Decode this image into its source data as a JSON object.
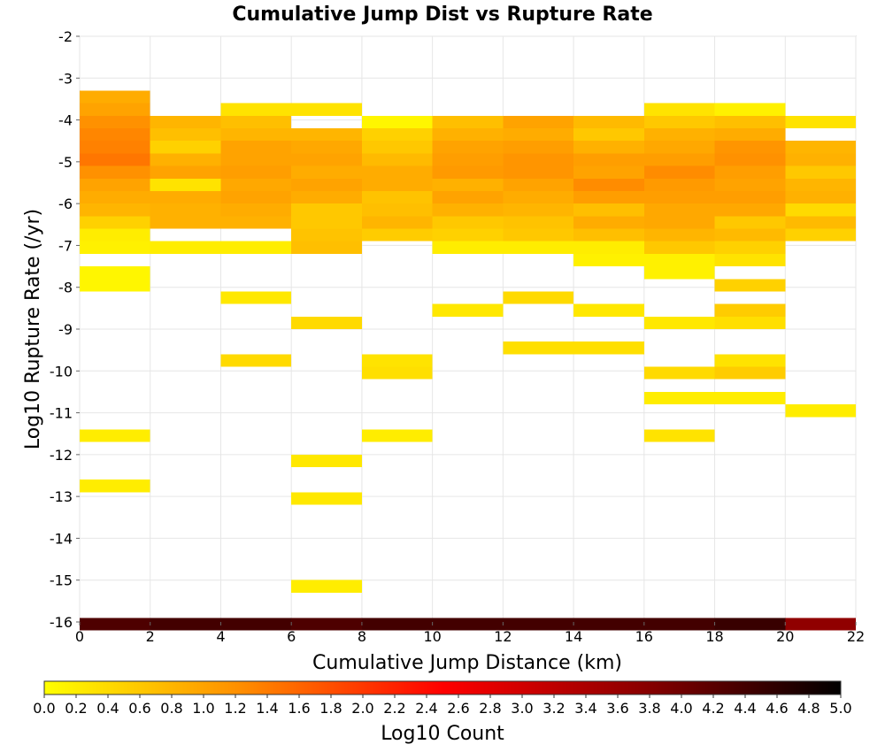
{
  "chart_data": {
    "type": "heatmap",
    "title": "Cumulative Jump Dist vs Rupture Rate",
    "xlabel": "Cumulative Jump Distance (km)",
    "ylabel": "Log10 Rupture Rate (/yr)",
    "colorbar_label": "Log10 Count",
    "xlim": [
      0,
      22
    ],
    "ylim": [
      -16,
      -2
    ],
    "x_ticks": [
      0,
      2,
      4,
      6,
      8,
      10,
      12,
      14,
      16,
      18,
      20,
      22
    ],
    "y_ticks": [
      -2,
      -3,
      -4,
      -5,
      -6,
      -7,
      -8,
      -9,
      -10,
      -11,
      -12,
      -13,
      -14,
      -15,
      -16
    ],
    "colorbar_ticks": [
      "0.0",
      "0.2",
      "0.4",
      "0.6",
      "0.8",
      "1.0",
      "1.2",
      "1.4",
      "1.6",
      "1.8",
      "2.0",
      "2.2",
      "2.4",
      "2.6",
      "2.8",
      "3.0",
      "3.2",
      "3.4",
      "3.6",
      "3.8",
      "4.0",
      "4.2",
      "4.4",
      "4.6",
      "4.8",
      "5.0"
    ],
    "colorbar_range": [
      0,
      5
    ],
    "colorscale": [
      "#ffff00",
      "#ff8c00",
      "#ff0000",
      "#8b0000",
      "#000000"
    ],
    "x_bin_width": 2,
    "y_bin_height": 0.3,
    "grid": true,
    "cells": [
      {
        "x": 0,
        "y0": -3.3,
        "v": 0.9
      },
      {
        "x": 0,
        "y0": -3.6,
        "v": 1.0
      },
      {
        "x": 0,
        "y0": -3.9,
        "v": 1.2
      },
      {
        "x": 0,
        "y0": -4.2,
        "v": 1.3
      },
      {
        "x": 0,
        "y0": -4.5,
        "v": 1.35
      },
      {
        "x": 0,
        "y0": -4.8,
        "v": 1.45
      },
      {
        "x": 0,
        "y0": -5.1,
        "v": 1.2
      },
      {
        "x": 0,
        "y0": -5.4,
        "v": 1.0
      },
      {
        "x": 0,
        "y0": -5.7,
        "v": 0.9
      },
      {
        "x": 0,
        "y0": -6.0,
        "v": 0.8
      },
      {
        "x": 0,
        "y0": -6.3,
        "v": 0.5
      },
      {
        "x": 0,
        "y0": -6.6,
        "v": 0.2
      },
      {
        "x": 0,
        "y0": -6.9,
        "v": 0.15
      },
      {
        "x": 0,
        "y0": -7.5,
        "v": 0.1
      },
      {
        "x": 0,
        "y0": -7.8,
        "v": 0.1
      },
      {
        "x": 0,
        "y0": -11.4,
        "v": 0.2
      },
      {
        "x": 0,
        "y0": -12.6,
        "v": 0.2
      },
      {
        "x": 0,
        "y0": -15.9,
        "v": 4.3
      },
      {
        "x": 2,
        "y0": -3.9,
        "v": 0.8
      },
      {
        "x": 2,
        "y0": -4.2,
        "v": 0.7
      },
      {
        "x": 2,
        "y0": -4.5,
        "v": 0.5
      },
      {
        "x": 2,
        "y0": -4.8,
        "v": 0.85
      },
      {
        "x": 2,
        "y0": -5.1,
        "v": 1.0
      },
      {
        "x": 2,
        "y0": -5.4,
        "v": 0.3
      },
      {
        "x": 2,
        "y0": -5.7,
        "v": 0.9
      },
      {
        "x": 2,
        "y0": -6.0,
        "v": 0.85
      },
      {
        "x": 2,
        "y0": -6.3,
        "v": 0.85
      },
      {
        "x": 2,
        "y0": -6.9,
        "v": 0.2
      },
      {
        "x": 2,
        "y0": -15.9,
        "v": 4.4
      },
      {
        "x": 4,
        "y0": -3.6,
        "v": 0.3
      },
      {
        "x": 4,
        "y0": -3.9,
        "v": 0.7
      },
      {
        "x": 4,
        "y0": -4.2,
        "v": 0.8
      },
      {
        "x": 4,
        "y0": -4.5,
        "v": 1.0
      },
      {
        "x": 4,
        "y0": -4.8,
        "v": 1.0
      },
      {
        "x": 4,
        "y0": -5.1,
        "v": 1.05
      },
      {
        "x": 4,
        "y0": -5.4,
        "v": 0.95
      },
      {
        "x": 4,
        "y0": -5.7,
        "v": 1.0
      },
      {
        "x": 4,
        "y0": -6.0,
        "v": 0.9
      },
      {
        "x": 4,
        "y0": -6.3,
        "v": 0.85
      },
      {
        "x": 4,
        "y0": -6.9,
        "v": 0.2
      },
      {
        "x": 4,
        "y0": -8.1,
        "v": 0.25
      },
      {
        "x": 4,
        "y0": -9.6,
        "v": 0.4
      },
      {
        "x": 4,
        "y0": -15.9,
        "v": 4.4
      },
      {
        "x": 6,
        "y0": -3.6,
        "v": 0.3
      },
      {
        "x": 6,
        "y0": -4.2,
        "v": 0.8
      },
      {
        "x": 6,
        "y0": -4.5,
        "v": 0.95
      },
      {
        "x": 6,
        "y0": -4.8,
        "v": 1.0
      },
      {
        "x": 6,
        "y0": -5.1,
        "v": 0.9
      },
      {
        "x": 6,
        "y0": -5.4,
        "v": 1.0
      },
      {
        "x": 6,
        "y0": -5.7,
        "v": 0.9
      },
      {
        "x": 6,
        "y0": -6.0,
        "v": 0.6
      },
      {
        "x": 6,
        "y0": -6.3,
        "v": 0.6
      },
      {
        "x": 6,
        "y0": -6.6,
        "v": 0.65
      },
      {
        "x": 6,
        "y0": -6.9,
        "v": 0.7
      },
      {
        "x": 6,
        "y0": -8.7,
        "v": 0.4
      },
      {
        "x": 6,
        "y0": -12.0,
        "v": 0.25
      },
      {
        "x": 6,
        "y0": -12.9,
        "v": 0.25
      },
      {
        "x": 6,
        "y0": -15.0,
        "v": 0.2
      },
      {
        "x": 6,
        "y0": -15.9,
        "v": 4.3
      },
      {
        "x": 8,
        "y0": -3.9,
        "v": 0.1
      },
      {
        "x": 8,
        "y0": -4.2,
        "v": 0.5
      },
      {
        "x": 8,
        "y0": -4.5,
        "v": 0.6
      },
      {
        "x": 8,
        "y0": -4.8,
        "v": 0.75
      },
      {
        "x": 8,
        "y0": -5.1,
        "v": 0.9
      },
      {
        "x": 8,
        "y0": -5.4,
        "v": 0.9
      },
      {
        "x": 8,
        "y0": -5.7,
        "v": 0.65
      },
      {
        "x": 8,
        "y0": -6.0,
        "v": 0.7
      },
      {
        "x": 8,
        "y0": -6.3,
        "v": 0.8
      },
      {
        "x": 8,
        "y0": -6.6,
        "v": 0.55
      },
      {
        "x": 8,
        "y0": -9.6,
        "v": 0.3
      },
      {
        "x": 8,
        "y0": -9.9,
        "v": 0.35
      },
      {
        "x": 8,
        "y0": -11.4,
        "v": 0.2
      },
      {
        "x": 8,
        "y0": -15.9,
        "v": 4.4
      },
      {
        "x": 10,
        "y0": -3.9,
        "v": 0.7
      },
      {
        "x": 10,
        "y0": -4.2,
        "v": 0.85
      },
      {
        "x": 10,
        "y0": -4.5,
        "v": 1.0
      },
      {
        "x": 10,
        "y0": -4.8,
        "v": 1.05
      },
      {
        "x": 10,
        "y0": -5.1,
        "v": 1.1
      },
      {
        "x": 10,
        "y0": -5.4,
        "v": 0.85
      },
      {
        "x": 10,
        "y0": -5.7,
        "v": 1.0
      },
      {
        "x": 10,
        "y0": -6.0,
        "v": 0.85
      },
      {
        "x": 10,
        "y0": -6.3,
        "v": 0.6
      },
      {
        "x": 10,
        "y0": -6.6,
        "v": 0.5
      },
      {
        "x": 10,
        "y0": -6.9,
        "v": 0.2
      },
      {
        "x": 10,
        "y0": -8.4,
        "v": 0.25
      },
      {
        "x": 10,
        "y0": -15.9,
        "v": 4.4
      },
      {
        "x": 12,
        "y0": -3.9,
        "v": 1.0
      },
      {
        "x": 12,
        "y0": -4.2,
        "v": 0.9
      },
      {
        "x": 12,
        "y0": -4.5,
        "v": 1.05
      },
      {
        "x": 12,
        "y0": -4.8,
        "v": 1.15
      },
      {
        "x": 12,
        "y0": -5.1,
        "v": 1.15
      },
      {
        "x": 12,
        "y0": -5.4,
        "v": 1.0
      },
      {
        "x": 12,
        "y0": -5.7,
        "v": 0.9
      },
      {
        "x": 12,
        "y0": -6.0,
        "v": 0.8
      },
      {
        "x": 12,
        "y0": -6.3,
        "v": 0.65
      },
      {
        "x": 12,
        "y0": -6.6,
        "v": 0.6
      },
      {
        "x": 12,
        "y0": -6.9,
        "v": 0.2
      },
      {
        "x": 12,
        "y0": -8.1,
        "v": 0.4
      },
      {
        "x": 12,
        "y0": -9.3,
        "v": 0.35
      },
      {
        "x": 12,
        "y0": -15.9,
        "v": 4.4
      },
      {
        "x": 14,
        "y0": -3.9,
        "v": 0.75
      },
      {
        "x": 14,
        "y0": -4.2,
        "v": 0.6
      },
      {
        "x": 14,
        "y0": -4.5,
        "v": 0.85
      },
      {
        "x": 14,
        "y0": -4.8,
        "v": 1.05
      },
      {
        "x": 14,
        "y0": -5.1,
        "v": 1.0
      },
      {
        "x": 14,
        "y0": -5.4,
        "v": 1.25
      },
      {
        "x": 14,
        "y0": -5.7,
        "v": 1.05
      },
      {
        "x": 14,
        "y0": -6.0,
        "v": 0.7
      },
      {
        "x": 14,
        "y0": -6.3,
        "v": 0.9
      },
      {
        "x": 14,
        "y0": -6.6,
        "v": 0.7
      },
      {
        "x": 14,
        "y0": -6.9,
        "v": 0.2
      },
      {
        "x": 14,
        "y0": -7.2,
        "v": 0.15
      },
      {
        "x": 14,
        "y0": -8.4,
        "v": 0.25
      },
      {
        "x": 14,
        "y0": -9.3,
        "v": 0.35
      },
      {
        "x": 14,
        "y0": -15.9,
        "v": 4.4
      },
      {
        "x": 16,
        "y0": -3.6,
        "v": 0.3
      },
      {
        "x": 16,
        "y0": -3.9,
        "v": 0.6
      },
      {
        "x": 16,
        "y0": -4.2,
        "v": 0.85
      },
      {
        "x": 16,
        "y0": -4.5,
        "v": 0.95
      },
      {
        "x": 16,
        "y0": -4.8,
        "v": 1.05
      },
      {
        "x": 16,
        "y0": -5.1,
        "v": 1.25
      },
      {
        "x": 16,
        "y0": -5.4,
        "v": 1.1
      },
      {
        "x": 16,
        "y0": -5.7,
        "v": 1.05
      },
      {
        "x": 16,
        "y0": -6.0,
        "v": 0.95
      },
      {
        "x": 16,
        "y0": -6.3,
        "v": 0.95
      },
      {
        "x": 16,
        "y0": -6.6,
        "v": 0.8
      },
      {
        "x": 16,
        "y0": -6.9,
        "v": 0.6
      },
      {
        "x": 16,
        "y0": -7.2,
        "v": 0.15
      },
      {
        "x": 16,
        "y0": -7.5,
        "v": 0.15
      },
      {
        "x": 16,
        "y0": -8.7,
        "v": 0.25
      },
      {
        "x": 16,
        "y0": -9.9,
        "v": 0.4
      },
      {
        "x": 16,
        "y0": -10.5,
        "v": 0.2
      },
      {
        "x": 16,
        "y0": -11.4,
        "v": 0.3
      },
      {
        "x": 16,
        "y0": -15.9,
        "v": 4.4
      },
      {
        "x": 18,
        "y0": -3.6,
        "v": 0.15
      },
      {
        "x": 18,
        "y0": -3.9,
        "v": 0.7
      },
      {
        "x": 18,
        "y0": -4.2,
        "v": 0.9
      },
      {
        "x": 18,
        "y0": -4.5,
        "v": 1.15
      },
      {
        "x": 18,
        "y0": -4.8,
        "v": 1.2
      },
      {
        "x": 18,
        "y0": -5.1,
        "v": 1.05
      },
      {
        "x": 18,
        "y0": -5.4,
        "v": 1.0
      },
      {
        "x": 18,
        "y0": -5.7,
        "v": 1.05
      },
      {
        "x": 18,
        "y0": -6.0,
        "v": 0.95
      },
      {
        "x": 18,
        "y0": -6.3,
        "v": 0.6
      },
      {
        "x": 18,
        "y0": -6.6,
        "v": 0.75
      },
      {
        "x": 18,
        "y0": -6.9,
        "v": 0.5
      },
      {
        "x": 18,
        "y0": -7.2,
        "v": 0.3
      },
      {
        "x": 18,
        "y0": -7.8,
        "v": 0.5
      },
      {
        "x": 18,
        "y0": -8.4,
        "v": 0.55
      },
      {
        "x": 18,
        "y0": -8.7,
        "v": 0.35
      },
      {
        "x": 18,
        "y0": -9.6,
        "v": 0.3
      },
      {
        "x": 18,
        "y0": -9.9,
        "v": 0.55
      },
      {
        "x": 18,
        "y0": -10.5,
        "v": 0.2
      },
      {
        "x": 18,
        "y0": -15.9,
        "v": 4.5
      },
      {
        "x": 20,
        "y0": -3.9,
        "v": 0.3
      },
      {
        "x": 20,
        "y0": -4.5,
        "v": 0.8
      },
      {
        "x": 20,
        "y0": -4.8,
        "v": 0.85
      },
      {
        "x": 20,
        "y0": -5.1,
        "v": 0.6
      },
      {
        "x": 20,
        "y0": -5.4,
        "v": 0.8
      },
      {
        "x": 20,
        "y0": -5.7,
        "v": 0.85
      },
      {
        "x": 20,
        "y0": -6.0,
        "v": 0.4
      },
      {
        "x": 20,
        "y0": -6.3,
        "v": 0.75
      },
      {
        "x": 20,
        "y0": -6.6,
        "v": 0.5
      },
      {
        "x": 20,
        "y0": -10.8,
        "v": 0.2
      },
      {
        "x": 20,
        "y0": -15.9,
        "v": 3.7
      }
    ]
  }
}
